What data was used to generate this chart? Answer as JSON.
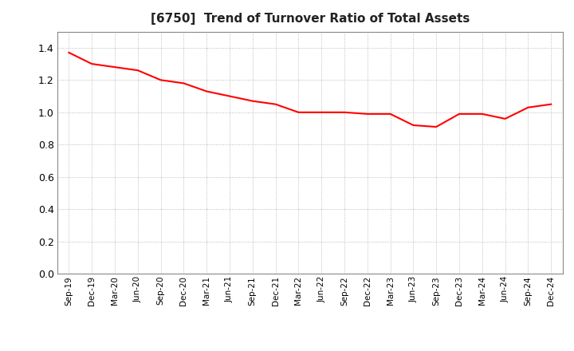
{
  "title": "[6750]  Trend of Turnover Ratio of Total Assets",
  "title_fontsize": 11,
  "title_fontweight": "bold",
  "line_color": "#FF0000",
  "line_width": 1.5,
  "background_color": "#FFFFFF",
  "plot_background_color": "#FFFFFF",
  "grid_color": "#AAAAAA",
  "ylim": [
    0.0,
    1.5
  ],
  "yticks": [
    0.0,
    0.2,
    0.4,
    0.6,
    0.8,
    1.0,
    1.2,
    1.4
  ],
  "x_labels": [
    "Sep-19",
    "Dec-19",
    "Mar-20",
    "Jun-20",
    "Sep-20",
    "Dec-20",
    "Mar-21",
    "Jun-21",
    "Sep-21",
    "Dec-21",
    "Mar-22",
    "Jun-22",
    "Sep-22",
    "Dec-22",
    "Mar-23",
    "Jun-23",
    "Sep-23",
    "Dec-23",
    "Mar-24",
    "Jun-24",
    "Sep-24",
    "Dec-24"
  ],
  "values": [
    1.37,
    1.3,
    1.28,
    1.26,
    1.2,
    1.18,
    1.13,
    1.1,
    1.07,
    1.05,
    1.0,
    1.0,
    1.0,
    0.99,
    0.99,
    0.92,
    0.91,
    0.99,
    0.99,
    0.96,
    1.03,
    1.05
  ]
}
